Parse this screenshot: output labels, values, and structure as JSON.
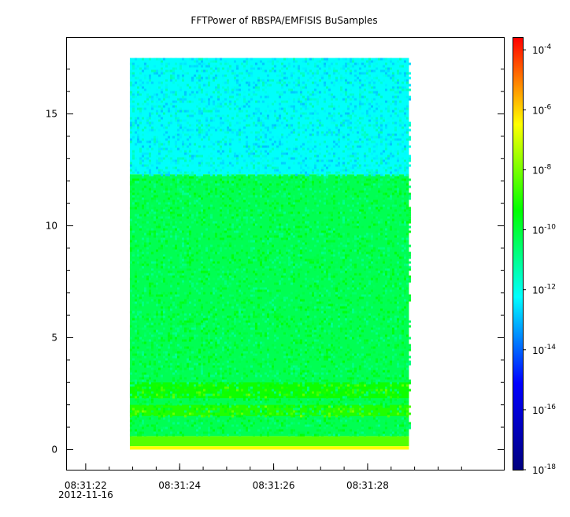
{
  "chart_data": {
    "type": "heatmap",
    "title": "FFTPower of RBSPA/EMFISIS  BuSamples",
    "xlabel": "",
    "ylabel": "",
    "x_axis": {
      "ticks": [
        {
          "time": "08:31:22",
          "date": "2012-11-16"
        },
        {
          "time": "08:31:24",
          "date": ""
        },
        {
          "time": "08:31:26",
          "date": ""
        },
        {
          "time": "08:31:28",
          "date": ""
        }
      ],
      "minor_ticks_seconds": [
        22.5,
        23,
        23.5,
        24,
        24.5,
        25,
        25.5,
        26,
        26.5,
        27,
        27.5,
        28,
        28.5,
        29,
        29.5,
        30
      ],
      "range_seconds": [
        21.6,
        30.9
      ],
      "data_extent_seconds": [
        22.94,
        28.88
      ]
    },
    "y_axis": {
      "ticks": [
        0,
        5,
        10,
        15
      ],
      "minor_ticks": [
        1,
        2,
        3,
        4,
        6,
        7,
        8,
        9,
        11,
        12,
        13,
        14,
        16,
        17
      ],
      "range": [
        -0.9,
        18.4
      ],
      "data_extent": [
        0,
        17.5
      ]
    },
    "colorbar": {
      "scale": "log",
      "range_exponent": [
        -18,
        -3.6
      ],
      "tick_labels": [
        {
          "base": "10",
          "exp": "-4",
          "value_exp": -4
        },
        {
          "base": "10",
          "exp": "-6",
          "value_exp": -6
        },
        {
          "base": "10",
          "exp": "-8",
          "value_exp": -8
        },
        {
          "base": "10",
          "exp": "-10",
          "value_exp": -10
        },
        {
          "base": "10",
          "exp": "-12",
          "value_exp": -12
        },
        {
          "base": "10",
          "exp": "-14",
          "value_exp": -14
        },
        {
          "base": "10",
          "exp": "-16",
          "value_exp": -16
        },
        {
          "base": "10",
          "exp": "-18",
          "value_exp": -18
        }
      ],
      "colormap": [
        "#00007f",
        "#0000ff",
        "#00ffff",
        "#00ff00",
        "#ffff00",
        "#ff0000"
      ]
    },
    "bands": [
      {
        "y_range": [
          12.3,
          17.5
        ],
        "log10_power": -12.2
      },
      {
        "y_range": [
          0.6,
          12.3
        ],
        "log10_power": -10.3
      },
      {
        "y_range": [
          2.3,
          3.0
        ],
        "log10_power": -9.2
      },
      {
        "y_range": [
          1.5,
          2.0
        ],
        "log10_power": -9.0
      },
      {
        "y_range": [
          0.15,
          0.6
        ],
        "log10_power": -8.4
      },
      {
        "y_range": [
          0.0,
          0.15
        ],
        "log10_power": -6.5
      }
    ],
    "grid": false
  }
}
